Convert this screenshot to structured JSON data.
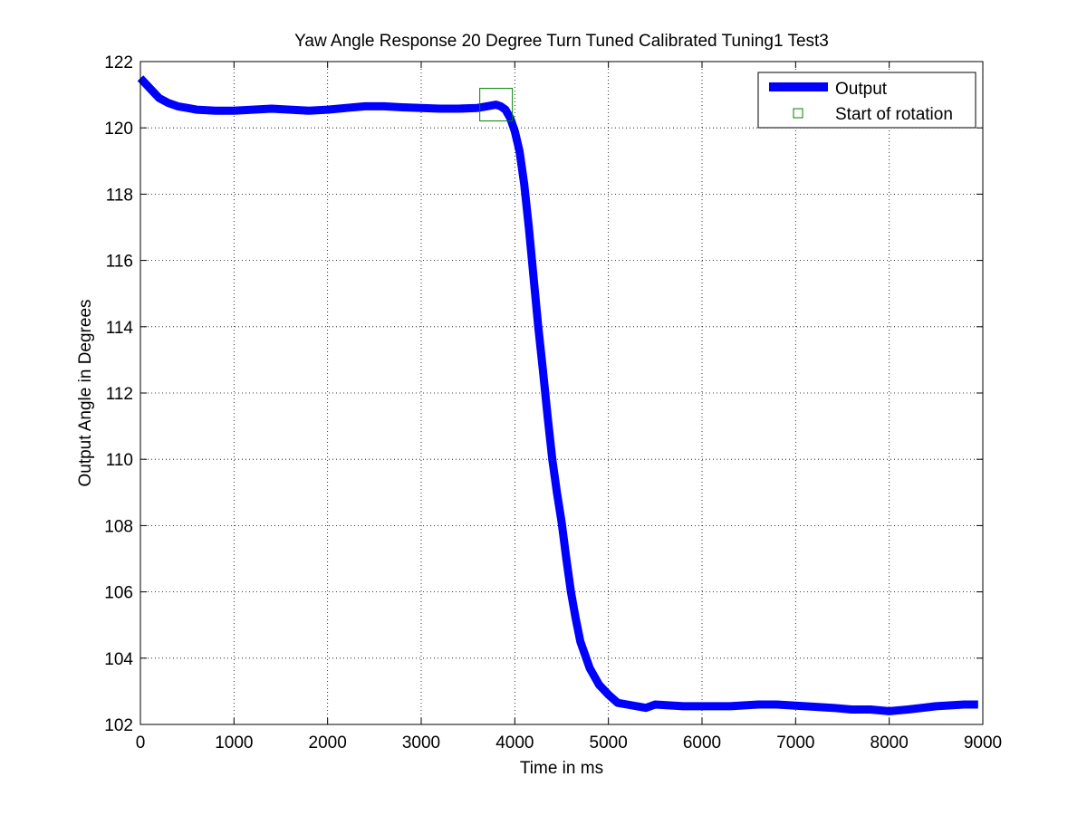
{
  "chart_data": {
    "type": "line",
    "title": "Yaw Angle Response 20 Degree Turn Tuned Calibrated Tuning1 Test3",
    "xlabel": "Time in ms",
    "ylabel": "Output Angle in Degrees",
    "xlim": [
      0,
      9000
    ],
    "ylim": [
      102,
      122
    ],
    "x_ticks": [
      0,
      1000,
      2000,
      3000,
      4000,
      5000,
      6000,
      7000,
      8000,
      9000
    ],
    "y_ticks": [
      102,
      104,
      106,
      108,
      110,
      112,
      114,
      116,
      118,
      120,
      122
    ],
    "grid": true,
    "legend_position": "top-right",
    "series": [
      {
        "name": "Output",
        "color": "#0000ff",
        "style": "thick-line",
        "x": [
          0,
          100,
          200,
          300,
          400,
          500,
          600,
          800,
          1000,
          1200,
          1400,
          1600,
          1800,
          2000,
          2200,
          2400,
          2600,
          2800,
          3000,
          3200,
          3400,
          3600,
          3700,
          3800,
          3850,
          3900,
          3950,
          4000,
          4050,
          4100,
          4150,
          4200,
          4250,
          4300,
          4350,
          4400,
          4450,
          4500,
          4550,
          4600,
          4650,
          4700,
          4800,
          4900,
          5000,
          5100,
          5200,
          5400,
          5500,
          5800,
          6000,
          6300,
          6600,
          6800,
          7100,
          7400,
          7600,
          7800,
          8000,
          8200,
          8500,
          8800,
          8950
        ],
        "y": [
          121.5,
          121.2,
          120.9,
          120.75,
          120.65,
          120.6,
          120.55,
          120.52,
          120.52,
          120.55,
          120.58,
          120.55,
          120.52,
          120.55,
          120.6,
          120.65,
          120.65,
          120.62,
          120.6,
          120.58,
          120.58,
          120.6,
          120.65,
          120.7,
          120.65,
          120.55,
          120.3,
          119.9,
          119.3,
          118.3,
          117.0,
          115.5,
          114.0,
          112.7,
          111.3,
          110.0,
          109.0,
          108.1,
          107.0,
          106.0,
          105.2,
          104.5,
          103.7,
          103.2,
          102.9,
          102.65,
          102.6,
          102.5,
          102.6,
          102.55,
          102.55,
          102.55,
          102.6,
          102.6,
          102.55,
          102.5,
          102.45,
          102.45,
          102.4,
          102.45,
          102.55,
          102.6,
          102.6
        ]
      },
      {
        "name": "Start of rotation",
        "color": "#008000",
        "style": "square-marker",
        "x": [
          3800
        ],
        "y": [
          120.7
        ]
      }
    ]
  }
}
